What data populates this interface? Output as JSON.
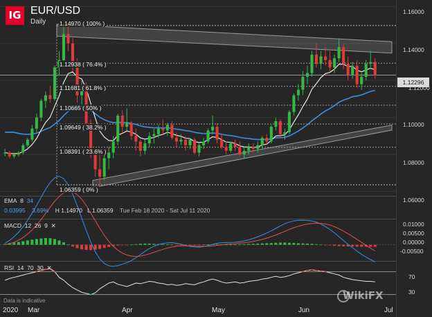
{
  "header": {
    "logo": "IG",
    "symbol": "EUR/USD",
    "timeframe": "Daily"
  },
  "fib_levels": [
    {
      "label": "1.14970 ( 100% )",
      "value": 1.1497
    },
    {
      "label": "1.12938 ( 76.4% )",
      "value": 1.12938
    },
    {
      "label": "1.11681 ( 61.8% )",
      "value": 1.11681
    },
    {
      "label": "1.10665 ( 50% )",
      "value": 1.10665
    },
    {
      "label": "1.09649 ( 38.2% )",
      "value": 1.09649
    },
    {
      "label": "1.08391 ( 23.6% )",
      "value": 1.08391
    },
    {
      "label": "1.06359 ( 0% )",
      "value": 1.06359
    }
  ],
  "last_price": "1.12296",
  "ema_legend": {
    "label": "EMA",
    "p1": "8",
    "p2": "34",
    "v1": "0.03995",
    "v2": "3.69%",
    "high": "H 1.14970",
    "low": "L 1.06359",
    "range": "Tue Feb 18 2020 - Sat Jul 11 2020"
  },
  "macd_legend": {
    "label": "MACD",
    "p1": "12",
    "p2": "26",
    "p3": "9"
  },
  "rsi_legend": {
    "label": "RSI",
    "p1": "14",
    "p2": "70",
    "p3": "30"
  },
  "disclaimer": "Data is indicative",
  "watermark": "WikiFX",
  "chart_data": [
    {
      "type": "candlestick",
      "title": "EUR/USD",
      "subtitle": "Daily",
      "y_ticks": [
        "1.16000",
        "1.14000",
        "1.12000",
        "1.10000",
        "1.08000",
        "1.06000"
      ],
      "y_tick_values": [
        1.16,
        1.14,
        1.12,
        1.1,
        1.08,
        1.06
      ],
      "ylim": [
        1.058,
        1.162
      ],
      "x_ticks": [
        "2020",
        "Mar",
        "Apr",
        "May",
        "Jun",
        "Jul"
      ],
      "candles": [
        [
          1.081,
          1.083,
          1.079,
          1.081
        ],
        [
          1.081,
          1.082,
          1.078,
          1.079
        ],
        [
          1.079,
          1.081,
          1.078,
          1.08
        ],
        [
          1.08,
          1.082,
          1.079,
          1.081
        ],
        [
          1.081,
          1.086,
          1.08,
          1.085
        ],
        [
          1.085,
          1.089,
          1.084,
          1.088
        ],
        [
          1.088,
          1.096,
          1.087,
          1.094
        ],
        [
          1.094,
          1.102,
          1.092,
          1.1
        ],
        [
          1.1,
          1.11,
          1.098,
          1.109
        ],
        [
          1.109,
          1.114,
          1.105,
          1.112
        ],
        [
          1.112,
          1.117,
          1.108,
          1.11
        ],
        [
          1.11,
          1.128,
          1.109,
          1.127
        ],
        [
          1.127,
          1.136,
          1.123,
          1.131
        ],
        [
          1.131,
          1.149,
          1.128,
          1.145
        ],
        [
          1.145,
          1.15,
          1.136,
          1.14
        ],
        [
          1.14,
          1.143,
          1.125,
          1.128
        ],
        [
          1.128,
          1.132,
          1.108,
          1.112
        ],
        [
          1.112,
          1.12,
          1.105,
          1.117
        ],
        [
          1.117,
          1.119,
          1.095,
          1.097
        ],
        [
          1.097,
          1.099,
          1.078,
          1.08
        ],
        [
          1.08,
          1.083,
          1.068,
          1.072
        ],
        [
          1.072,
          1.082,
          1.064,
          1.068
        ],
        [
          1.068,
          1.08,
          1.066,
          1.078
        ],
        [
          1.078,
          1.084,
          1.072,
          1.081
        ],
        [
          1.081,
          1.09,
          1.078,
          1.087
        ],
        [
          1.087,
          1.102,
          1.085,
          1.101
        ],
        [
          1.101,
          1.104,
          1.092,
          1.095
        ],
        [
          1.095,
          1.105,
          1.093,
          1.097
        ],
        [
          1.097,
          1.098,
          1.088,
          1.09
        ],
        [
          1.09,
          1.094,
          1.082,
          1.087
        ],
        [
          1.087,
          1.088,
          1.079,
          1.082
        ],
        [
          1.082,
          1.088,
          1.08,
          1.086
        ],
        [
          1.086,
          1.092,
          1.084,
          1.09
        ],
        [
          1.09,
          1.094,
          1.086,
          1.091
        ],
        [
          1.091,
          1.096,
          1.089,
          1.094
        ],
        [
          1.094,
          1.099,
          1.091,
          1.093
        ],
        [
          1.093,
          1.097,
          1.09,
          1.096
        ],
        [
          1.096,
          1.098,
          1.088,
          1.089
        ],
        [
          1.089,
          1.092,
          1.084,
          1.087
        ],
        [
          1.087,
          1.091,
          1.085,
          1.088
        ],
        [
          1.088,
          1.09,
          1.082,
          1.085
        ],
        [
          1.085,
          1.089,
          1.083,
          1.088
        ],
        [
          1.088,
          1.089,
          1.08,
          1.081
        ],
        [
          1.081,
          1.086,
          1.079,
          1.085
        ],
        [
          1.085,
          1.089,
          1.083,
          1.087
        ],
        [
          1.087,
          1.094,
          1.086,
          1.093
        ],
        [
          1.093,
          1.101,
          1.091,
          1.095
        ],
        [
          1.095,
          1.097,
          1.086,
          1.088
        ],
        [
          1.088,
          1.091,
          1.083,
          1.084
        ],
        [
          1.084,
          1.087,
          1.08,
          1.082
        ],
        [
          1.082,
          1.087,
          1.081,
          1.086
        ],
        [
          1.086,
          1.088,
          1.082,
          1.084
        ],
        [
          1.084,
          1.087,
          1.079,
          1.08
        ],
        [
          1.08,
          1.084,
          1.078,
          1.082
        ],
        [
          1.082,
          1.086,
          1.08,
          1.084
        ],
        [
          1.084,
          1.086,
          1.081,
          1.083
        ],
        [
          1.083,
          1.087,
          1.081,
          1.085
        ],
        [
          1.085,
          1.09,
          1.083,
          1.089
        ],
        [
          1.089,
          1.091,
          1.085,
          1.087
        ],
        [
          1.087,
          1.096,
          1.086,
          1.095
        ],
        [
          1.095,
          1.1,
          1.093,
          1.098
        ],
        [
          1.098,
          1.099,
          1.089,
          1.091
        ],
        [
          1.091,
          1.094,
          1.088,
          1.092
        ],
        [
          1.092,
          1.104,
          1.091,
          1.103
        ],
        [
          1.103,
          1.113,
          1.101,
          1.112
        ],
        [
          1.112,
          1.118,
          1.109,
          1.115
        ],
        [
          1.115,
          1.125,
          1.112,
          1.122
        ],
        [
          1.122,
          1.128,
          1.118,
          1.124
        ],
        [
          1.124,
          1.136,
          1.122,
          1.134
        ],
        [
          1.134,
          1.14,
          1.127,
          1.129
        ],
        [
          1.129,
          1.136,
          1.126,
          1.133
        ],
        [
          1.133,
          1.138,
          1.128,
          1.131
        ],
        [
          1.131,
          1.136,
          1.125,
          1.127
        ],
        [
          1.127,
          1.134,
          1.124,
          1.132
        ],
        [
          1.132,
          1.142,
          1.13,
          1.138
        ],
        [
          1.138,
          1.14,
          1.126,
          1.129
        ],
        [
          1.129,
          1.133,
          1.12,
          1.123
        ],
        [
          1.123,
          1.13,
          1.121,
          1.128
        ],
        [
          1.128,
          1.131,
          1.116,
          1.118
        ],
        [
          1.118,
          1.124,
          1.115,
          1.122
        ],
        [
          1.122,
          1.131,
          1.12,
          1.129
        ],
        [
          1.129,
          1.136,
          1.126,
          1.13
        ],
        [
          1.13,
          1.132,
          1.121,
          1.123
        ]
      ],
      "series": [
        {
          "name": "EMA 8"
        },
        {
          "name": "EMA 34"
        }
      ]
    },
    {
      "type": "bar",
      "title": "MACD 12 26 9",
      "y_ticks": [
        "0.01000",
        "0.00500",
        "0.00000",
        "-0.00500"
      ],
      "y_tick_values": [
        0.01,
        0.005,
        0.0,
        -0.005
      ],
      "ylim": [
        -0.0075,
        0.0125
      ],
      "histogram": [
        0.0004,
        0.0008,
        0.0011,
        0.0014,
        0.0018,
        0.0022,
        0.0026,
        0.0029,
        0.0032,
        0.0034,
        0.0033,
        0.0029,
        0.0022,
        0.0012,
        0.0001,
        -0.0009,
        -0.0017,
        -0.0023,
        -0.0026,
        -0.0027,
        -0.0025,
        -0.0021,
        -0.0016,
        -0.0011,
        -0.0007,
        -0.0004,
        -0.0002,
        -0.0001,
        0.0001,
        0.0003,
        0.0005,
        0.0006,
        0.0006,
        0.0005,
        0.0004,
        0.0003,
        0.0002,
        0.0001,
        -0.0001,
        -0.0002,
        -0.0003,
        -0.0003,
        -0.0002,
        -0.0001,
        0.0001,
        0.0002,
        0.0003,
        0.0003,
        0.0002,
        0.0001,
        0.0001,
        0.0001,
        0.0002,
        0.0003,
        0.0004,
        0.0005,
        0.0006,
        0.0007,
        0.0008,
        0.0009,
        0.001,
        0.0011,
        0.0011,
        0.001,
        0.0009,
        0.0008,
        0.0007,
        0.0006,
        0.0005,
        0.0003,
        0.0001,
        -0.0001,
        -0.0003,
        -0.0005,
        -0.0007,
        -0.0008,
        -0.0009,
        -0.0009,
        -0.001,
        -0.001,
        -0.001,
        -0.001,
        -0.001
      ],
      "series": [
        {
          "name": "MACD"
        },
        {
          "name": "Signal"
        }
      ]
    },
    {
      "type": "line",
      "title": "RSI 14 70 30",
      "y_ticks": [
        "70",
        "30"
      ],
      "y_tick_values": [
        70,
        30
      ],
      "ylim": [
        15,
        85
      ],
      "values": [
        55,
        58,
        60,
        62,
        64,
        66,
        68,
        70,
        72,
        74,
        75,
        70,
        60,
        55,
        48,
        42,
        38,
        34,
        32,
        30,
        33,
        40,
        45,
        50,
        52,
        48,
        46,
        44,
        47,
        50,
        49,
        51,
        53,
        52,
        50,
        49,
        47,
        48,
        46,
        47,
        49,
        48,
        47,
        50,
        52,
        55,
        57,
        55,
        52,
        50,
        51,
        52,
        50,
        51,
        53,
        54,
        55,
        57,
        58,
        60,
        62,
        60,
        61,
        63,
        66,
        68,
        70,
        72,
        73,
        72,
        71,
        70,
        68,
        66,
        64,
        60,
        58,
        56,
        55,
        54,
        53,
        53,
        52
      ],
      "series": [
        {
          "name": "RSI"
        }
      ]
    }
  ]
}
